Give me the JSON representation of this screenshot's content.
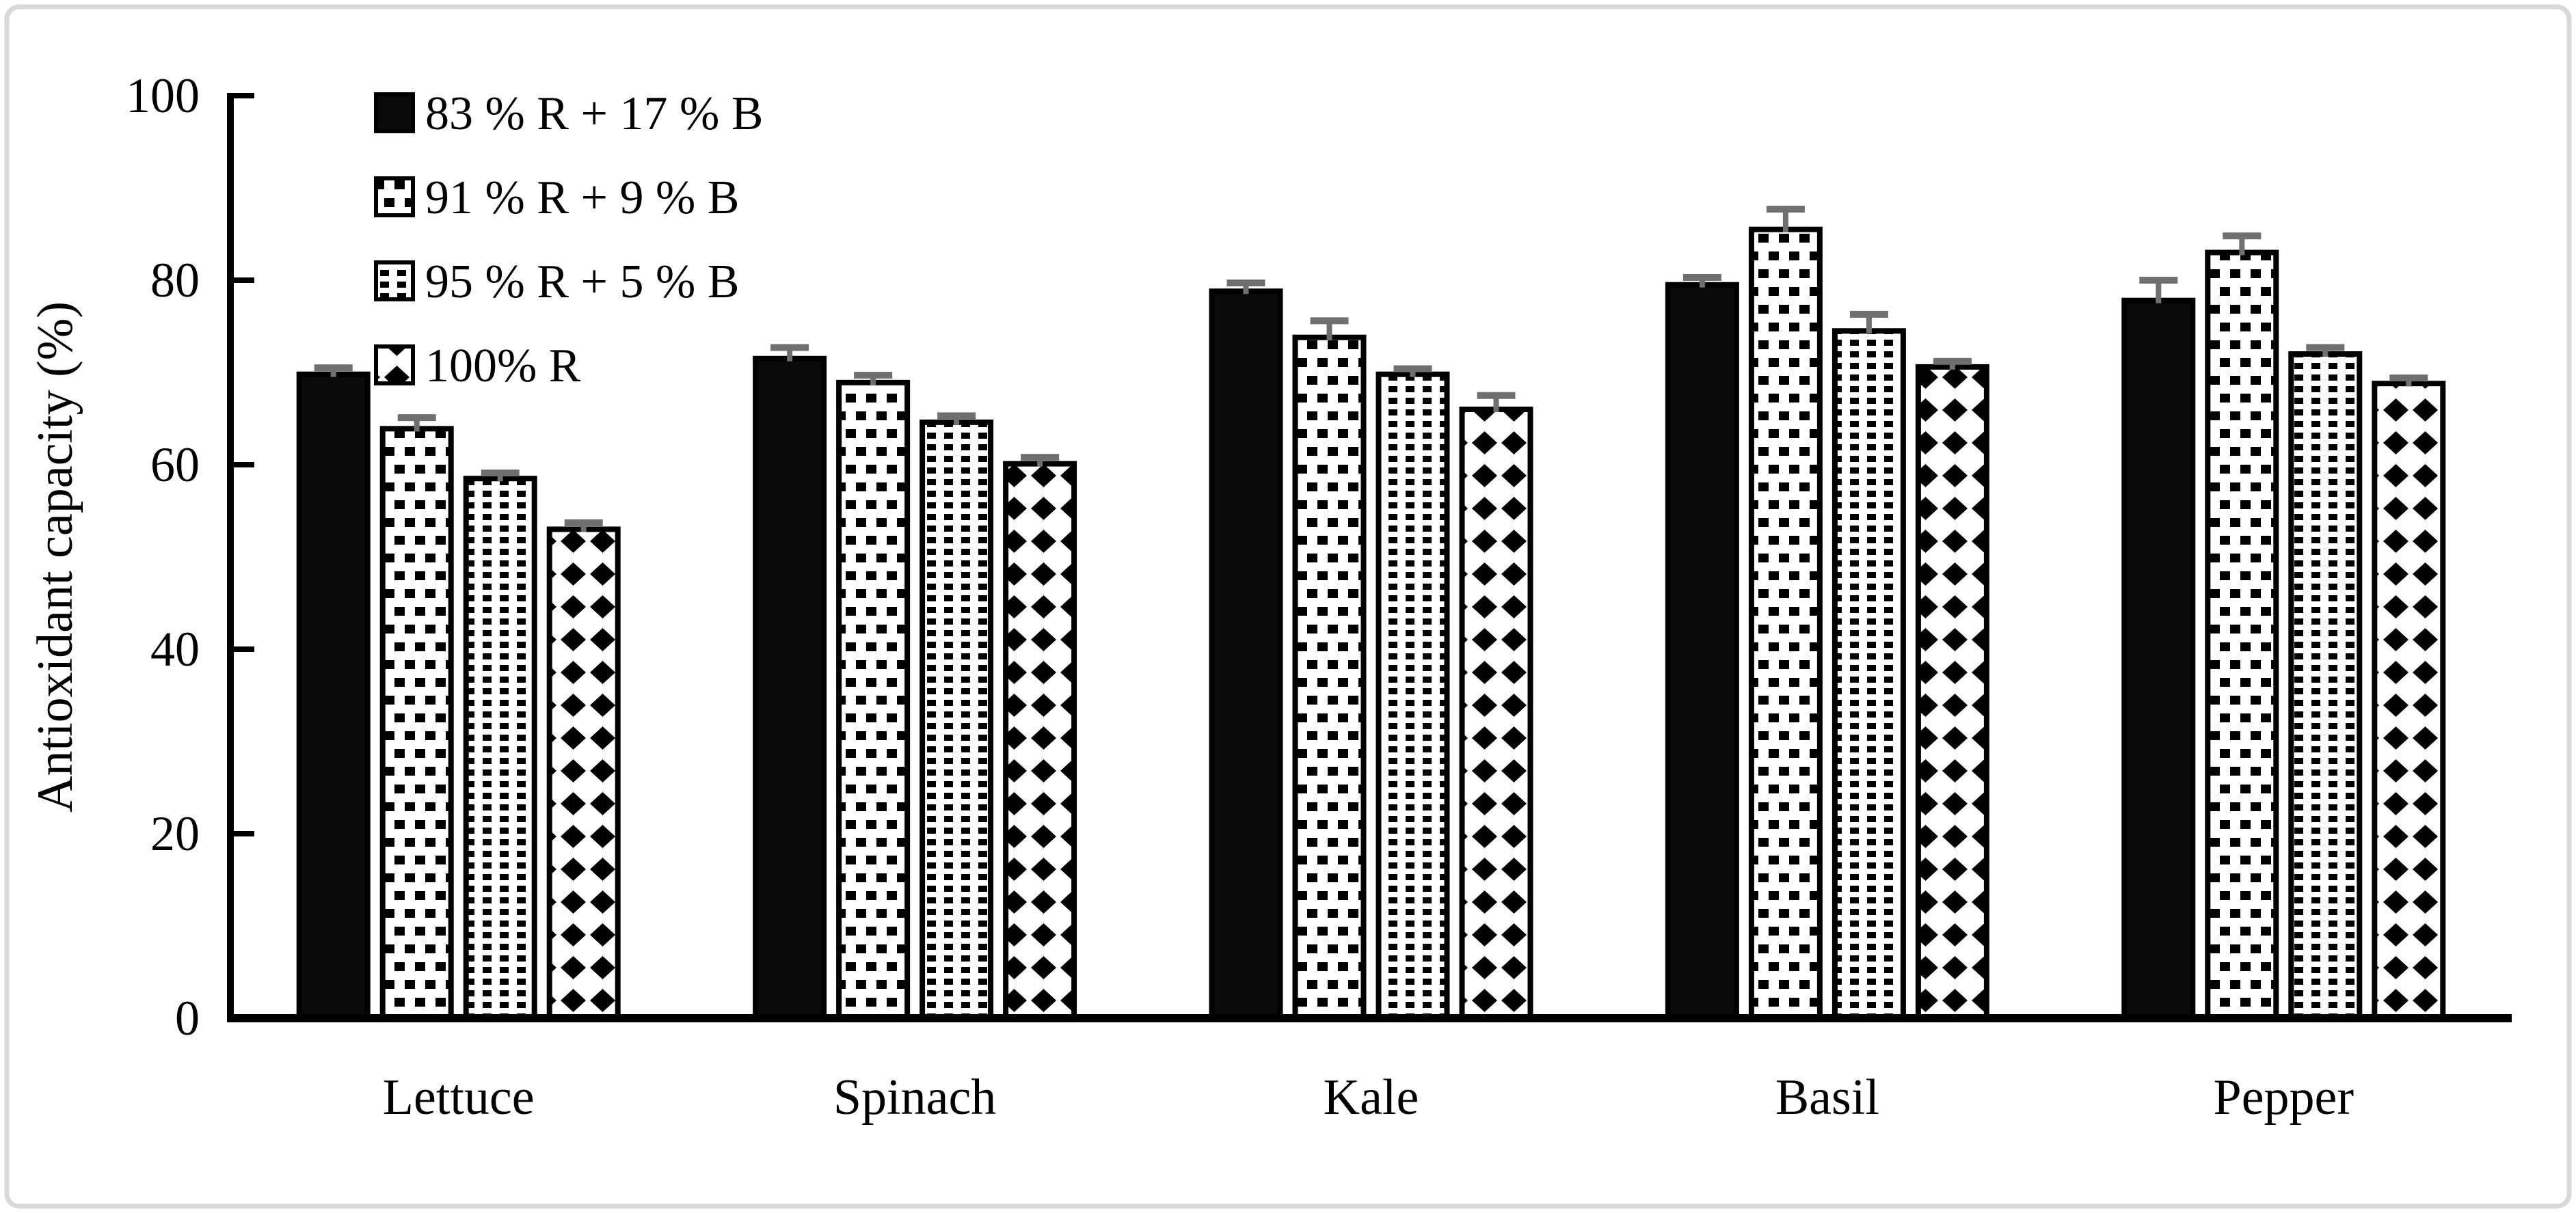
{
  "figure": {
    "background": "#ffffff",
    "border_color": "#d9d9d9",
    "text_color": "#000000",
    "bar_outline_color": "#000000",
    "solid_bar_color": "#0a0a0a",
    "error_bar_color": "#6f6f6f"
  },
  "chart_data": {
    "type": "bar",
    "title": "",
    "xlabel": "",
    "ylabel": "Antioxidant capacity (%)",
    "ylim": [
      0,
      100
    ],
    "yticks": [
      0,
      20,
      40,
      60,
      80,
      100
    ],
    "grid": false,
    "legend_position": "top-left-inside",
    "categories": [
      "Lettuce",
      "Spinach",
      "Kale",
      "Basil",
      "Pepper"
    ],
    "series": [
      {
        "name": "83 % R + 17 % B",
        "pattern": "solid",
        "values": [
          69.8,
          71.5,
          78.8,
          79.5,
          77.8
        ],
        "errors": [
          0.7,
          1.2,
          0.9,
          0.8,
          2.2
        ]
      },
      {
        "name": "91 % R + 9 % B",
        "pattern": "dashes",
        "values": [
          63.9,
          68.9,
          73.8,
          85.5,
          83.0
        ],
        "errors": [
          1.2,
          0.8,
          1.8,
          2.2,
          1.8
        ]
      },
      {
        "name": "95 % R + 5 % B",
        "pattern": "dots",
        "values": [
          58.5,
          64.6,
          69.8,
          74.5,
          72.0
        ],
        "errors": [
          0.6,
          0.7,
          0.6,
          1.8,
          0.7
        ]
      },
      {
        "name": "100% R",
        "pattern": "diamonds",
        "values": [
          53.0,
          60.1,
          66.0,
          70.6,
          68.8
        ],
        "errors": [
          0.7,
          0.7,
          1.5,
          0.6,
          0.6
        ]
      }
    ]
  }
}
